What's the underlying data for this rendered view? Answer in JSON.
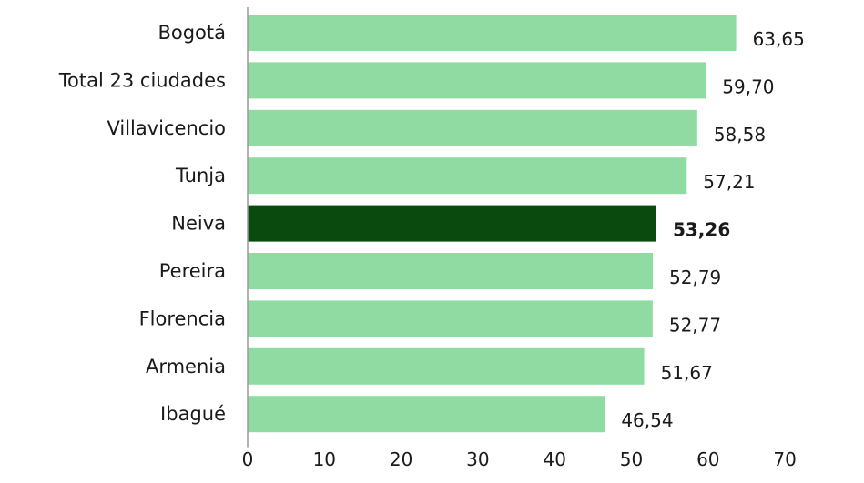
{
  "chart_data": {
    "type": "bar",
    "orientation": "horizontal",
    "categories": [
      "Bogotá",
      "Total 23 ciudades",
      "Villavicencio",
      "Tunja",
      "Neiva",
      "Pereira",
      "Florencia",
      "Armenia",
      "Ibagué"
    ],
    "values": [
      63.65,
      59.7,
      58.58,
      57.21,
      53.26,
      52.79,
      52.77,
      51.67,
      46.54
    ],
    "value_labels": [
      "63,65",
      "59,70",
      "58,58",
      "57,21",
      "53,26",
      "52,79",
      "52,77",
      "51,67",
      "46,54"
    ],
    "highlight_category": "Neiva",
    "xlim": [
      0,
      70
    ],
    "x_ticks": [
      "0",
      "10",
      "20",
      "30",
      "40",
      "50",
      "60",
      "70"
    ],
    "grid": false,
    "colors": {
      "bar": "#8fdba1",
      "highlight": "#0b4a0f",
      "axis": "#9a9a9a"
    }
  }
}
